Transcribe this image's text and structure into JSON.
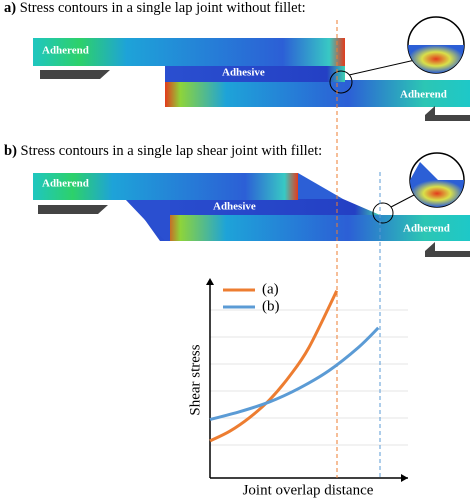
{
  "panels": [
    {
      "label": "a)",
      "title": "Stress contours in a single lap joint without fillet:",
      "top_adherend": "Adherend",
      "adhesive": "Adhesive",
      "bottom_adherend": "Adherend"
    },
    {
      "label": "b)",
      "title": "Stress contours in a single lap shear joint with fillet:",
      "top_adherend": "Adherend",
      "adhesive": "Adhesive",
      "bottom_adherend": "Adherend"
    }
  ],
  "chart_data": {
    "type": "line",
    "xlabel": "Joint overlap distance",
    "ylabel": "Shear stress",
    "xlim": [
      0,
      10
    ],
    "ylim": [
      0,
      10
    ],
    "series": [
      {
        "name": "(a)",
        "color": "#ed7d31",
        "x": [
          0,
          1,
          2,
          3,
          4,
          5,
          6.4
        ],
        "values": [
          1.9,
          2.4,
          3.1,
          4.0,
          5.2,
          6.7,
          9.6
        ]
      },
      {
        "name": "(b)",
        "color": "#5b9bd5",
        "x": [
          0,
          1.5,
          3,
          4.5,
          6,
          7.5,
          8.5
        ],
        "values": [
          3.0,
          3.4,
          3.9,
          4.6,
          5.5,
          6.7,
          7.7
        ]
      }
    ]
  }
}
